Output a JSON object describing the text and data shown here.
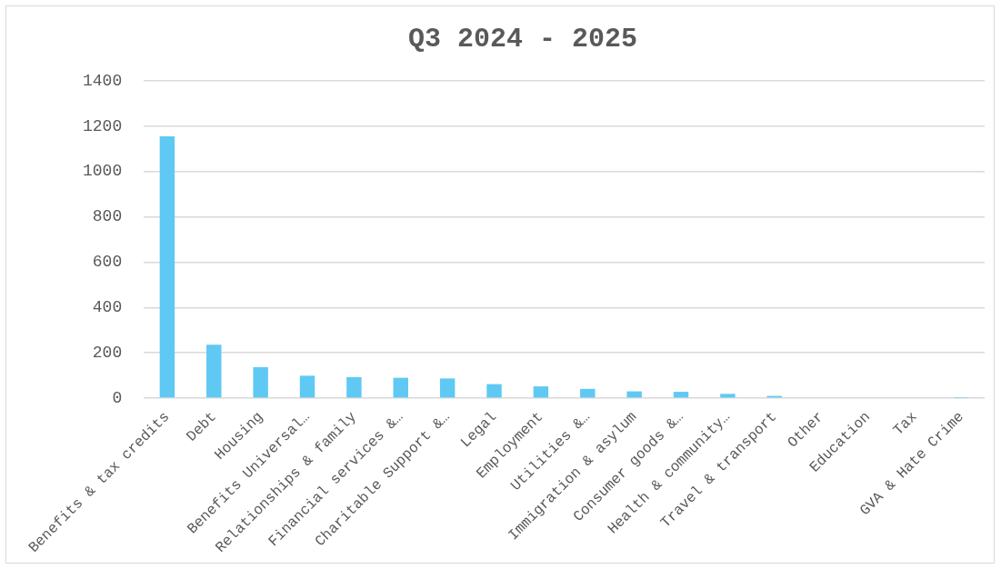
{
  "chart_data": {
    "type": "bar",
    "title": "Q3 2024 - 2025",
    "categories": [
      "Benefits & tax credits",
      "Debt",
      "Housing",
      "Benefits Universal…",
      "Relationships & family",
      "Financial services &…",
      "Charitable Support &…",
      "Legal",
      "Employment",
      "Utilities &…",
      "Immigration & asylum",
      "Consumer goods &…",
      "Health & community…",
      "Travel & transport",
      "Other",
      "Education",
      "Tax",
      "GVA & Hate Crime"
    ],
    "values": [
      1155,
      236,
      137,
      99,
      93,
      90,
      87,
      62,
      52,
      41,
      30,
      28,
      19,
      10,
      null,
      3,
      null,
      1
    ],
    "color": "#5fc9f3",
    "ylim": [
      0,
      1400
    ],
    "yticks": [
      0,
      200,
      400,
      600,
      800,
      1000,
      1200,
      1400
    ],
    "grid": "y"
  }
}
